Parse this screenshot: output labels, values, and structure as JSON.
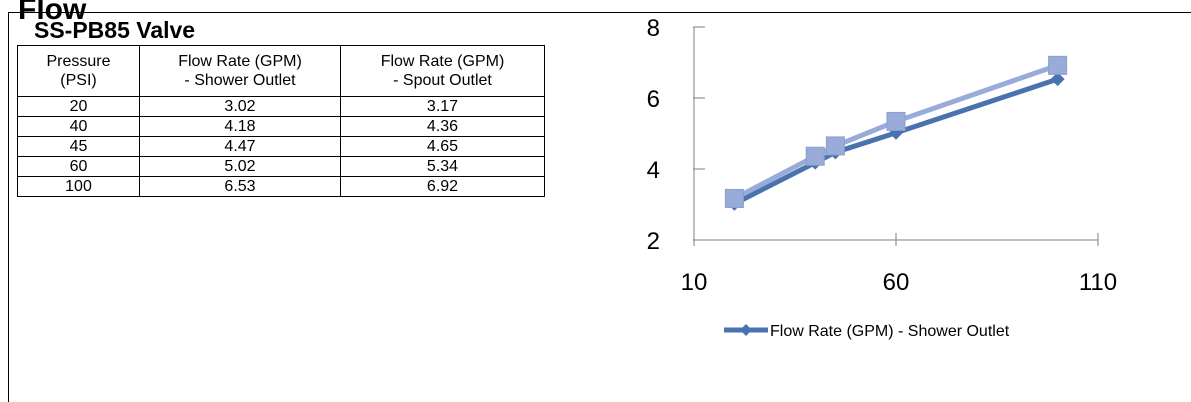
{
  "heading_fragment": "Flow",
  "table": {
    "title": "SS-PB85 Valve",
    "headers": [
      [
        "Pressure",
        "(PSI)"
      ],
      [
        "Flow Rate (GPM)",
        "- Shower Outlet"
      ],
      [
        "Flow Rate (GPM)",
        "- Spout Outlet"
      ]
    ],
    "rows": [
      [
        "20",
        "3.02",
        "3.17"
      ],
      [
        "40",
        "4.18",
        "4.36"
      ],
      [
        "45",
        "4.47",
        "4.65"
      ],
      [
        "60",
        "5.02",
        "5.34"
      ],
      [
        "100",
        "6.53",
        "6.92"
      ]
    ]
  },
  "chart_data": {
    "type": "line",
    "x": [
      20,
      40,
      45,
      60,
      100
    ],
    "series": [
      {
        "name": "Flow Rate (GPM) - Shower Outlet",
        "values": [
          3.02,
          4.18,
          4.47,
          5.02,
          6.53
        ],
        "color": "#4A72AE",
        "marker": "diamond"
      },
      {
        "name": "Flow Rate (GPM) - Spout Outlet",
        "values": [
          3.17,
          4.36,
          4.65,
          5.34,
          6.92
        ],
        "color": "#98ABD9",
        "marker": "square"
      }
    ],
    "xlim": [
      10,
      110
    ],
    "ylim": [
      2,
      8
    ],
    "x_ticks": [
      "10",
      "60",
      "110"
    ],
    "y_ticks": [
      "2",
      "4",
      "6",
      "8"
    ],
    "legend": {
      "position": "bottom",
      "entries": [
        "Flow Rate (GPM) - Shower Outlet"
      ]
    },
    "grid": false
  }
}
